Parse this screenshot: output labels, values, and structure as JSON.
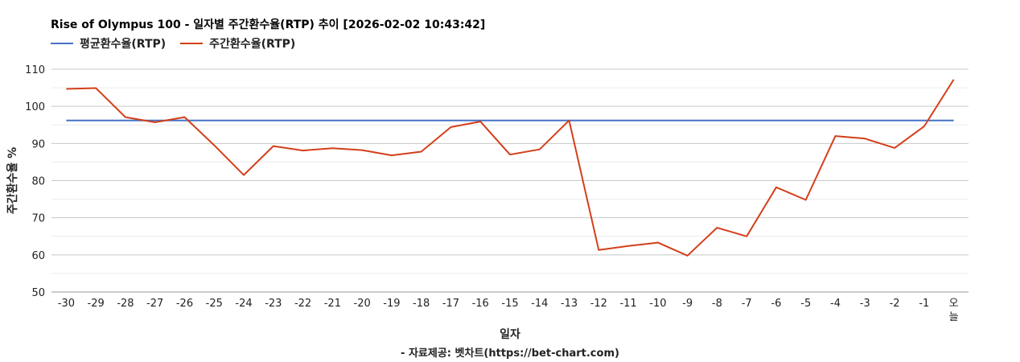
{
  "chart_data": {
    "type": "line",
    "title": "Rise of Olympus 100 - 일자별 주간환수율(RTP) 추이 [2026-02-02 10:43:42]",
    "xlabel": "일자",
    "ylabel": "주간환수율 %",
    "source": "- 자료제공: 벳차트(https://bet-chart.com)",
    "ylim": [
      50,
      110
    ],
    "yticks": [
      "50",
      "60",
      "70",
      "80",
      "90",
      "100",
      "110"
    ],
    "categories": [
      "-30",
      "-29",
      "-28",
      "-27",
      "-26",
      "-25",
      "-24",
      "-23",
      "-22",
      "-21",
      "-20",
      "-19",
      "-18",
      "-17",
      "-16",
      "-15",
      "-14",
      "-13",
      "-12",
      "-11",
      "-10",
      "-9",
      "-8",
      "-7",
      "-6",
      "-5",
      "-4",
      "-3",
      "-2",
      "-1",
      "오늘"
    ],
    "grid": true,
    "legend_position": "top-left",
    "series": [
      {
        "name": "평균환수율(RTP)",
        "color": "#4472c4",
        "values": [
          96.2,
          96.2,
          96.2,
          96.2,
          96.2,
          96.2,
          96.2,
          96.2,
          96.2,
          96.2,
          96.2,
          96.2,
          96.2,
          96.2,
          96.2,
          96.2,
          96.2,
          96.2,
          96.2,
          96.2,
          96.2,
          96.2,
          96.2,
          96.2,
          96.2,
          96.2,
          96.2,
          96.2,
          96.2,
          96.2,
          96.2
        ]
      },
      {
        "name": "주간환수율(RTP)",
        "color": "#d43f1a",
        "values": [
          104.7,
          104.9,
          97.1,
          95.7,
          97.1,
          89.5,
          81.5,
          89.3,
          88.1,
          88.7,
          88.2,
          86.8,
          87.8,
          94.4,
          95.9,
          87.0,
          88.4,
          96.2,
          61.3,
          62.4,
          63.3,
          59.8,
          67.3,
          65.0,
          78.2,
          74.8,
          92.0,
          91.3,
          88.8,
          94.6,
          107.2
        ]
      }
    ]
  }
}
